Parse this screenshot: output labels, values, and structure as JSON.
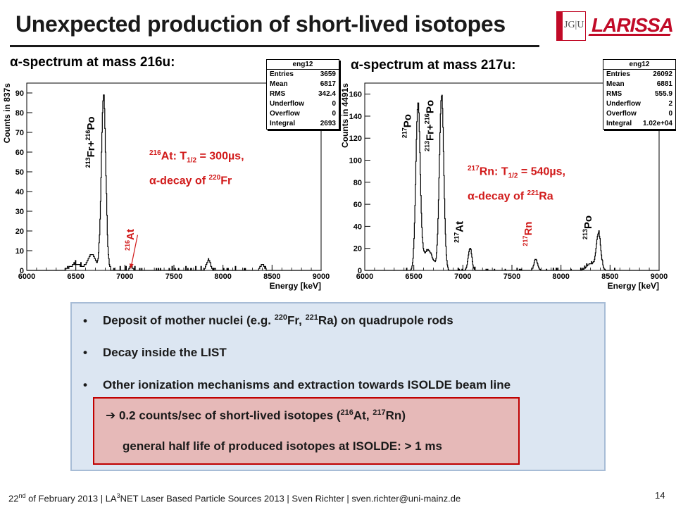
{
  "title": "Unexpected production of short-lived isotopes",
  "logos": {
    "jgu": "JG|U",
    "larissa": "LARISSA"
  },
  "charts": [
    {
      "subtitle": "α-spectrum at mass 216u:",
      "stats_title": "eng12",
      "stats": [
        {
          "k": "Entries",
          "v": "3659"
        },
        {
          "k": "Mean",
          "v": "6817"
        },
        {
          "k": "RMS",
          "v": "342.4"
        },
        {
          "k": "Underflow",
          "v": "0"
        },
        {
          "k": "Overflow",
          "v": "0"
        },
        {
          "k": "Integral",
          "v": "2693"
        }
      ],
      "note_a": "216",
      "note_b": "At: T",
      "note_c": "1/2",
      "note_d": " = 300µs,",
      "note_e": "α-decay of ",
      "note_f": "220",
      "note_g": "Fr"
    },
    {
      "subtitle": "α-spectrum at mass 217u:",
      "stats_title": "eng12",
      "stats": [
        {
          "k": "Entries",
          "v": "26092"
        },
        {
          "k": "Mean",
          "v": "6881"
        },
        {
          "k": "RMS",
          "v": "555.9"
        },
        {
          "k": "Underflow",
          "v": "2"
        },
        {
          "k": "Overflow",
          "v": "0"
        },
        {
          "k": "Integral",
          "v": "1.02e+04"
        }
      ],
      "note_a": "217",
      "note_b": "Rn: T",
      "note_c": "1/2",
      "note_d": " = 540µs,",
      "note_e": "α-decay of ",
      "note_f": "221",
      "note_g": "Ra"
    }
  ],
  "chart_data": [
    {
      "type": "line",
      "xlabel": "Energy [keV]",
      "ylabel": "Counts in 837s",
      "xlim": [
        6000,
        9000
      ],
      "ylim": [
        0,
        95
      ],
      "xticks": [
        6000,
        6500,
        7000,
        7500,
        8000,
        8500,
        9000
      ],
      "yticks": [
        0,
        10,
        20,
        30,
        40,
        50,
        60,
        70,
        80,
        90
      ],
      "peaks": [
        {
          "x": 6780,
          "y": 88,
          "w": 22
        },
        {
          "x": 6660,
          "y": 8,
          "w": 40
        },
        {
          "x": 6500,
          "y": 3,
          "w": 60
        },
        {
          "x": 7060,
          "y": 2,
          "w": 15
        },
        {
          "x": 7850,
          "y": 5,
          "w": 20
        },
        {
          "x": 8400,
          "y": 3,
          "w": 20
        }
      ],
      "labels": [
        {
          "text": "213Fr+216Po",
          "x": 6690,
          "y": 52,
          "color": "#000000"
        },
        {
          "text": "216At",
          "x": 7090,
          "y": 10,
          "color": "#d11a1a"
        }
      ]
    },
    {
      "type": "line",
      "xlabel": "Energy [keV]",
      "ylabel": "Counts in 4491s",
      "xlim": [
        6000,
        9000
      ],
      "ylim": [
        0,
        170
      ],
      "xticks": [
        6000,
        6500,
        7000,
        7500,
        8000,
        8500,
        9000
      ],
      "yticks": [
        0,
        20,
        40,
        60,
        80,
        100,
        120,
        140,
        160
      ],
      "peaks": [
        {
          "x": 6540,
          "y": 148,
          "w": 22
        },
        {
          "x": 6780,
          "y": 157,
          "w": 22
        },
        {
          "x": 6640,
          "y": 18,
          "w": 50
        },
        {
          "x": 7070,
          "y": 20,
          "w": 18
        },
        {
          "x": 7740,
          "y": 10,
          "w": 18
        },
        {
          "x": 8380,
          "y": 33,
          "w": 22
        },
        {
          "x": 8300,
          "y": 6,
          "w": 40
        }
      ],
      "labels": [
        {
          "text": "217Po",
          "x": 6470,
          "y": 120,
          "color": "#000000"
        },
        {
          "text": "213Fr+216Po",
          "x": 6700,
          "y": 108,
          "color": "#000000"
        },
        {
          "text": "217At",
          "x": 7000,
          "y": 25,
          "color": "#000000"
        },
        {
          "text": "217Rn",
          "x": 7700,
          "y": 22,
          "color": "#d11a1a"
        },
        {
          "text": "213Po",
          "x": 8310,
          "y": 28,
          "color": "#000000"
        }
      ]
    }
  ],
  "bullets": {
    "b1_a": "Deposit of mother nuclei (e.g. ",
    "b1_s1": "220",
    "b1_b": "Fr, ",
    "b1_s2": "221",
    "b1_c": "Ra) on quadrupole rods",
    "b2": "Decay inside the LIST",
    "b3": "Other ionization mechanisms and extraction towards ISOLDE beam line",
    "h1_arrow": "➔",
    "h1_a": " 0.2 counts/sec of short-lived isotopes (",
    "h1_s1": "216",
    "h1_b": "At, ",
    "h1_s2": "217",
    "h1_c": "Rn)",
    "h2": "general half life of produced isotopes at ISOLDE: > 1 ms",
    "bullet_char": "•"
  },
  "footer": {
    "a": "22",
    "b": "nd",
    "c": " of February 2013 | LA",
    "d": "3",
    "e": "NET Laser Based Particle Sources 2013 | Sven Richter | sven.richter@uni-mainz.de"
  },
  "page_number": "14"
}
